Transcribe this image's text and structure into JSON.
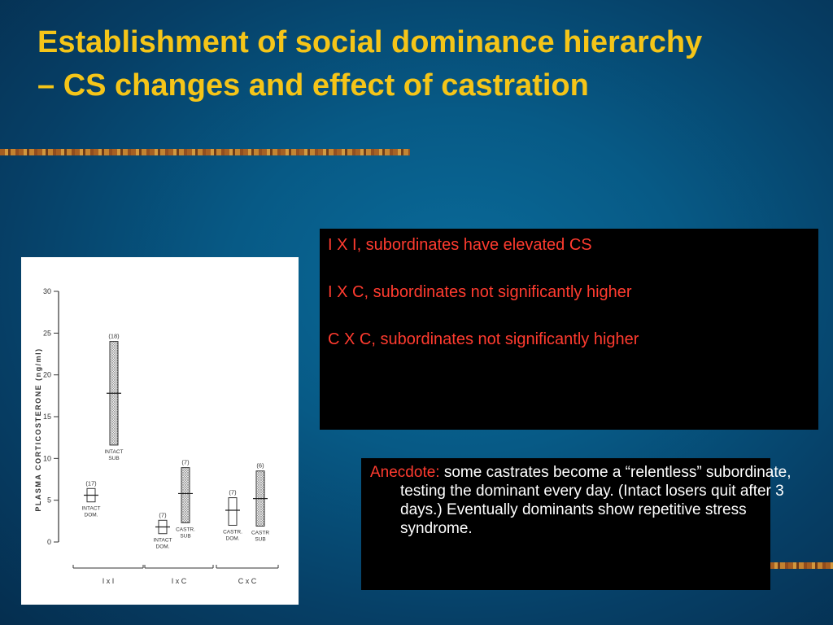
{
  "slide": {
    "title": "Establishment of social dominance hierarchy – CS changes and effect of castration"
  },
  "notes_box": {
    "lines": [
      "I X I, subordinates have elevated CS",
      "I X C, subordinates not significantly higher",
      "C X C, subordinates not significantly higher"
    ]
  },
  "anecdote_box": {
    "label": "Anecdote:",
    "text": " some castrates become a “relentless” subordinate, testing the dominant every day. (Intact losers quit after 3 days.)  Eventually dominants show repetitive stress syndrome."
  },
  "chart_data": {
    "type": "box",
    "ylabel": "PLASMA CORTICOSTERONE (ng/ml)",
    "ylim": [
      0,
      30
    ],
    "yticks": [
      "0",
      "5",
      "10",
      "15",
      "20",
      "25",
      "30"
    ],
    "groups": [
      "I x I",
      "I x C",
      "C x C"
    ],
    "boxes": [
      {
        "group": "I x I",
        "label": [
          "INTACT",
          "DOM."
        ],
        "n": "(17)",
        "mean": 5.6,
        "low": 4.8,
        "high": 6.4,
        "shaded": false
      },
      {
        "group": "I x I",
        "label": [
          "INTACT",
          "SUB"
        ],
        "n": "(18)",
        "mean": 17.8,
        "low": 11.6,
        "high": 24.0,
        "shaded": true
      },
      {
        "group": "I x C",
        "label": [
          "INTACT",
          "DOM."
        ],
        "n": "(7)",
        "mean": 1.8,
        "low": 1.0,
        "high": 2.6,
        "shaded": false
      },
      {
        "group": "I x C",
        "label": [
          "CASTR.",
          "SUB"
        ],
        "n": "(7)",
        "mean": 5.8,
        "low": 2.3,
        "high": 8.9,
        "shaded": true
      },
      {
        "group": "C x C",
        "label": [
          "CASTR.",
          "DOM."
        ],
        "n": "(7)",
        "mean": 3.8,
        "low": 2.0,
        "high": 5.3,
        "shaded": false
      },
      {
        "group": "C x C",
        "label": [
          "CASTR",
          "SUB"
        ],
        "n": "(6)",
        "mean": 5.2,
        "low": 1.9,
        "high": 8.5,
        "shaded": true
      }
    ]
  }
}
